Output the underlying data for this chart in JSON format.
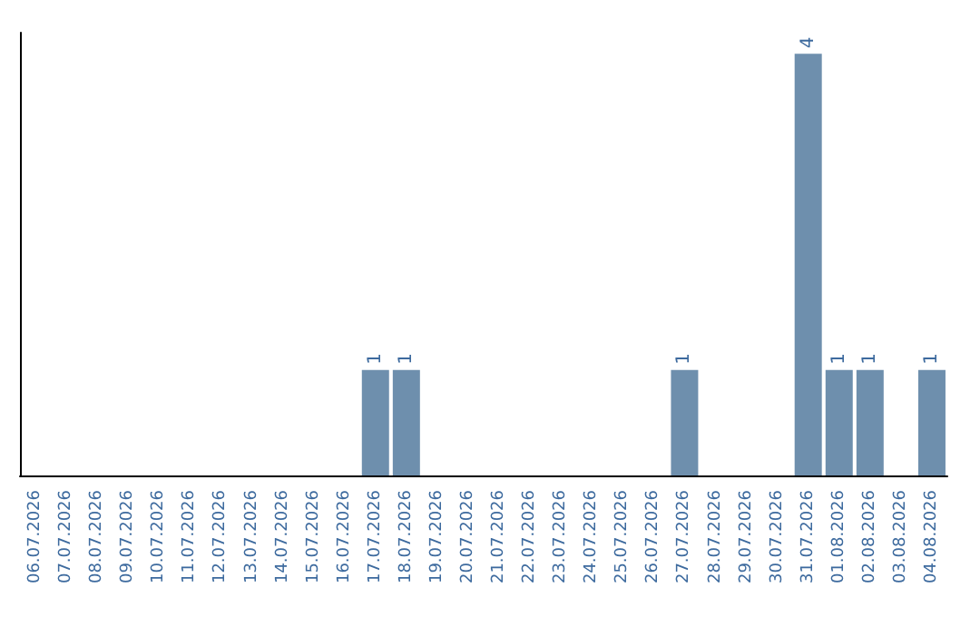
{
  "chart_data": {
    "type": "bar",
    "categories": [
      "06.07.2026",
      "07.07.2026",
      "08.07.2026",
      "09.07.2026",
      "10.07.2026",
      "11.07.2026",
      "12.07.2026",
      "13.07.2026",
      "14.07.2026",
      "15.07.2026",
      "16.07.2026",
      "17.07.2026",
      "18.07.2026",
      "19.07.2026",
      "20.07.2026",
      "21.07.2026",
      "22.07.2026",
      "23.07.2026",
      "24.07.2026",
      "25.07.2026",
      "26.07.2026",
      "27.07.2026",
      "28.07.2026",
      "29.07.2026",
      "30.07.2026",
      "31.07.2026",
      "01.08.2026",
      "02.08.2026",
      "03.08.2026",
      "04.08.2026"
    ],
    "values": [
      0,
      0,
      0,
      0,
      0,
      0,
      0,
      0,
      0,
      0,
      0,
      1,
      1,
      0,
      0,
      0,
      0,
      0,
      0,
      0,
      0,
      1,
      0,
      0,
      0,
      4,
      1,
      1,
      0,
      1
    ],
    "value_labels": [
      null,
      null,
      null,
      null,
      null,
      null,
      null,
      null,
      null,
      null,
      null,
      "1",
      "1",
      null,
      null,
      null,
      null,
      null,
      null,
      null,
      null,
      "1",
      null,
      null,
      null,
      "4",
      "1",
      "1",
      null,
      "1"
    ],
    "color": "#6e8fad",
    "grid": false,
    "tick_labels": "x"
  }
}
